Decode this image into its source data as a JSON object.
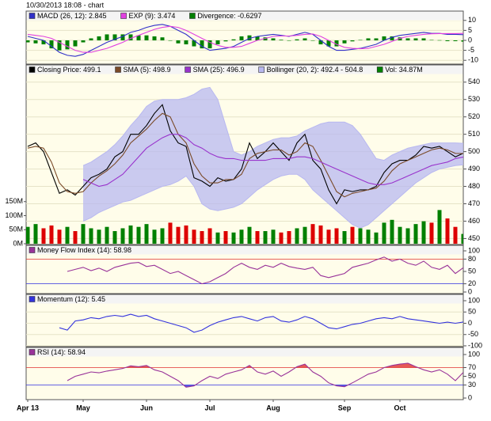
{
  "header": {
    "title": "10/30/2013 18:08 -  chart"
  },
  "chart_data": [
    {
      "type": "line",
      "ylim": [
        -11.5,
        11.5
      ],
      "yticks": [
        10,
        5,
        0,
        -5,
        -10
      ],
      "grid": true,
      "series": [
        {
          "name": "MACD (26, 12): 2.845",
          "kind": "line",
          "color": "#3030c8",
          "values": [
            2,
            1,
            0,
            -3,
            -6,
            -7.5,
            -8,
            -7,
            -5,
            -3,
            -1,
            0.5,
            2,
            4,
            5,
            6.5,
            7.5,
            8,
            7,
            5,
            3,
            0,
            -3,
            -5,
            -4.5,
            -4,
            -3,
            -1,
            1,
            2,
            2.5,
            3,
            2.5,
            2,
            3,
            4,
            3,
            0,
            -3,
            -5,
            -5,
            -4.5,
            -4,
            -3,
            -2,
            0,
            1.5,
            2.5,
            3,
            3.5,
            4,
            3.5,
            3.5,
            3,
            3,
            2.845
          ]
        },
        {
          "name": "EXP (9): 3.474",
          "kind": "line",
          "color": "#e040e0",
          "values": [
            3,
            2.5,
            2,
            1,
            -1,
            -3,
            -5,
            -6,
            -6,
            -5,
            -4,
            -2.5,
            -1,
            1,
            2.5,
            4,
            5.5,
            6.5,
            7,
            6.5,
            5,
            3,
            1,
            -1,
            -2.5,
            -3.5,
            -3.5,
            -3,
            -1.5,
            0,
            1,
            2,
            2.2,
            2.2,
            2.5,
            3,
            3.2,
            2,
            0,
            -2,
            -3.5,
            -4,
            -4.2,
            -4,
            -3,
            -2,
            -0.5,
            1,
            2,
            2.5,
            3,
            3.3,
            3.4,
            3.4,
            3.4,
            3.474
          ]
        },
        {
          "name": "Divergence: -0.6297",
          "kind": "bar",
          "color": "#008000",
          "values": [
            -1,
            -1.5,
            -2,
            -4,
            -5,
            -4.5,
            -3,
            -1,
            1,
            2,
            3,
            3,
            3,
            3,
            2.5,
            2.5,
            2,
            1.5,
            0,
            -1.5,
            -2,
            -3,
            -4,
            -4,
            -2,
            -0.5,
            0.5,
            2,
            2.5,
            2,
            1.5,
            1,
            0.3,
            -0.2,
            0.5,
            1,
            -0.2,
            -2,
            -3,
            -3,
            -1.5,
            -0.5,
            0.2,
            1,
            1,
            2,
            2,
            1.5,
            1,
            1,
            1,
            0.2,
            0.1,
            -0.4,
            -0.4,
            -0.6297
          ]
        }
      ]
    },
    {
      "type": "line",
      "ylim": [
        447,
        544
      ],
      "yticks": [
        540,
        530,
        520,
        510,
        500,
        490,
        480,
        470,
        460,
        450
      ],
      "grid": true,
      "y2lim": [
        0,
        600
      ],
      "y2ticks": [
        {
          "value": 150,
          "label": "150M"
        },
        {
          "value": 100,
          "label": "100M"
        },
        {
          "value": 50,
          "label": "50M"
        },
        {
          "value": 0,
          "label": "0M"
        }
      ],
      "series": [
        {
          "name": "Closing Price: 499.1",
          "kind": "line",
          "color": "#000000",
          "values": [
            503,
            505,
            500,
            488,
            476,
            478,
            475,
            480,
            485,
            487,
            490,
            497,
            500,
            510,
            510,
            515,
            522,
            527,
            512,
            505,
            503,
            485,
            483,
            480,
            485,
            483,
            484,
            490,
            505,
            496,
            500,
            505,
            500,
            495,
            505,
            510,
            495,
            490,
            478,
            470,
            478,
            477,
            478,
            478,
            480,
            488,
            493,
            495,
            495,
            498,
            503,
            502,
            503,
            500,
            497,
            499.1
          ]
        },
        {
          "name": "SMA (5): 498.9",
          "kind": "line",
          "color": "#7a4a28",
          "values": [
            502,
            503,
            502,
            494,
            482,
            477,
            476,
            477,
            482,
            486,
            489,
            493,
            498,
            505,
            509,
            513,
            518,
            522,
            520,
            510,
            505,
            493,
            486,
            482,
            482,
            484,
            484,
            487,
            496,
            499,
            500,
            501,
            501,
            498,
            500,
            505,
            503,
            495,
            486,
            477,
            474,
            476,
            477,
            478,
            479,
            483,
            489,
            493,
            495,
            497,
            499,
            501,
            502,
            501,
            499,
            498.9
          ]
        },
        {
          "name": "SMA (25): 496.9",
          "kind": "line",
          "color": "#9933cc",
          "values": [
            null,
            null,
            null,
            null,
            null,
            null,
            null,
            484,
            482,
            480,
            481,
            484,
            487,
            492,
            497,
            502,
            505,
            508,
            510,
            510,
            508,
            504,
            502,
            499,
            497,
            496,
            496,
            495,
            495,
            495,
            495,
            496,
            496,
            496,
            497,
            497,
            496,
            494,
            492,
            490,
            488,
            486,
            484,
            482,
            481,
            481,
            482,
            484,
            486,
            488,
            490,
            492,
            493,
            494,
            496,
            496.9
          ]
        },
        {
          "name": "Bollinger (20, 2): 492.4 - 504.8",
          "kind": "band",
          "color": "#b8b8f0",
          "upper": [
            null,
            null,
            null,
            null,
            null,
            null,
            null,
            492,
            494,
            497,
            500,
            504,
            509,
            515,
            520,
            526,
            529,
            530,
            530,
            530,
            531,
            533,
            536,
            537,
            530,
            515,
            500,
            498,
            500,
            503,
            505,
            507,
            508,
            508,
            509,
            512,
            514,
            516,
            517,
            517,
            517,
            515,
            510,
            503,
            496,
            495,
            498,
            500,
            502,
            503,
            504,
            505,
            505,
            505,
            505,
            504.8
          ],
          "lower": [
            null,
            null,
            null,
            null,
            null,
            null,
            null,
            460,
            462,
            465,
            467,
            469,
            471,
            472,
            474,
            476,
            478,
            480,
            481,
            483,
            486,
            480,
            470,
            467,
            466,
            467,
            468,
            470,
            474,
            478,
            481,
            484,
            486,
            487,
            487,
            484,
            478,
            474,
            470,
            466,
            462,
            458,
            456,
            458,
            462,
            466,
            470,
            474,
            478,
            482,
            485,
            488,
            490,
            491,
            492,
            492.4
          ]
        },
        {
          "name": "Vol: 34.87M",
          "kind": "bar",
          "axis": "y2",
          "color": "#008000",
          "up_color": "#008000",
          "down_color": "#dd0000",
          "values": [
            60,
            70,
            55,
            65,
            50,
            60,
            45,
            70,
            55,
            50,
            60,
            45,
            55,
            65,
            60,
            70,
            50,
            55,
            75,
            60,
            65,
            50,
            45,
            55,
            40,
            45,
            40,
            50,
            60,
            45,
            45,
            50,
            40,
            45,
            55,
            60,
            70,
            65,
            50,
            55,
            45,
            60,
            55,
            50,
            40,
            75,
            85,
            60,
            55,
            70,
            80,
            75,
            120,
            90,
            60,
            34.87
          ]
        }
      ]
    },
    {
      "type": "line",
      "ylim": [
        0,
        100
      ],
      "yticks": [
        100,
        80,
        50,
        20,
        0
      ],
      "grid": false,
      "levels": [
        {
          "value": 80,
          "color": "#e03030"
        },
        {
          "value": 20,
          "color": "#3030e0"
        }
      ],
      "series": [
        {
          "name": "Money Flow Index (14): 58.98",
          "kind": "line",
          "color": "#993399",
          "values": [
            null,
            null,
            null,
            null,
            null,
            50,
            55,
            60,
            52,
            58,
            50,
            60,
            65,
            70,
            72,
            62,
            65,
            55,
            45,
            50,
            40,
            30,
            20,
            25,
            35,
            45,
            60,
            70,
            60,
            55,
            65,
            60,
            70,
            62,
            58,
            55,
            60,
            40,
            35,
            40,
            45,
            60,
            65,
            70,
            78,
            85,
            75,
            80,
            70,
            65,
            75,
            60,
            55,
            65,
            45,
            58.98
          ]
        }
      ]
    },
    {
      "type": "line",
      "ylim": [
        -100,
        100
      ],
      "yticks": [
        100,
        50,
        0,
        -50,
        -100
      ],
      "grid": true,
      "series": [
        {
          "name": "Momentum (12): 5.45",
          "kind": "line",
          "color": "#3333dd",
          "values": [
            null,
            null,
            null,
            null,
            -20,
            -30,
            10,
            15,
            25,
            20,
            30,
            35,
            30,
            40,
            30,
            35,
            20,
            10,
            0,
            -10,
            -20,
            -40,
            -30,
            -10,
            5,
            15,
            25,
            30,
            20,
            10,
            25,
            30,
            10,
            5,
            15,
            30,
            20,
            0,
            -20,
            -25,
            -15,
            -5,
            0,
            10,
            20,
            25,
            20,
            30,
            20,
            15,
            10,
            5,
            0,
            5,
            0,
            5.45
          ]
        }
      ]
    },
    {
      "type": "line",
      "ylim": [
        0,
        100
      ],
      "yticks": [
        100,
        70,
        50,
        30,
        0
      ],
      "grid": false,
      "levels": [
        {
          "value": 70,
          "color": "#e03030"
        },
        {
          "value": 30,
          "color": "#3030e0"
        }
      ],
      "fill_levels": true,
      "categories": [
        "Apr 13",
        null,
        null,
        null,
        null,
        null,
        null,
        "May",
        null,
        null,
        null,
        null,
        null,
        null,
        null,
        "Jun",
        null,
        null,
        null,
        null,
        null,
        null,
        null,
        "Jul",
        null,
        null,
        null,
        null,
        null,
        null,
        null,
        "Aug",
        null,
        null,
        null,
        null,
        null,
        null,
        null,
        null,
        "Sep",
        null,
        null,
        null,
        null,
        null,
        null,
        "Oct",
        null,
        null,
        null,
        null,
        null,
        null,
        null,
        null
      ],
      "series": [
        {
          "name": "RSI (14): 58.94",
          "kind": "line",
          "color": "#993399",
          "values": [
            null,
            null,
            null,
            null,
            null,
            40,
            50,
            55,
            60,
            58,
            62,
            65,
            68,
            74,
            72,
            75,
            65,
            60,
            50,
            40,
            25,
            28,
            40,
            50,
            45,
            55,
            60,
            65,
            75,
            60,
            55,
            62,
            50,
            60,
            72,
            78,
            60,
            50,
            35,
            28,
            26,
            35,
            45,
            55,
            60,
            70,
            75,
            78,
            80,
            72,
            65,
            60,
            65,
            55,
            40,
            58.94
          ]
        }
      ]
    }
  ]
}
